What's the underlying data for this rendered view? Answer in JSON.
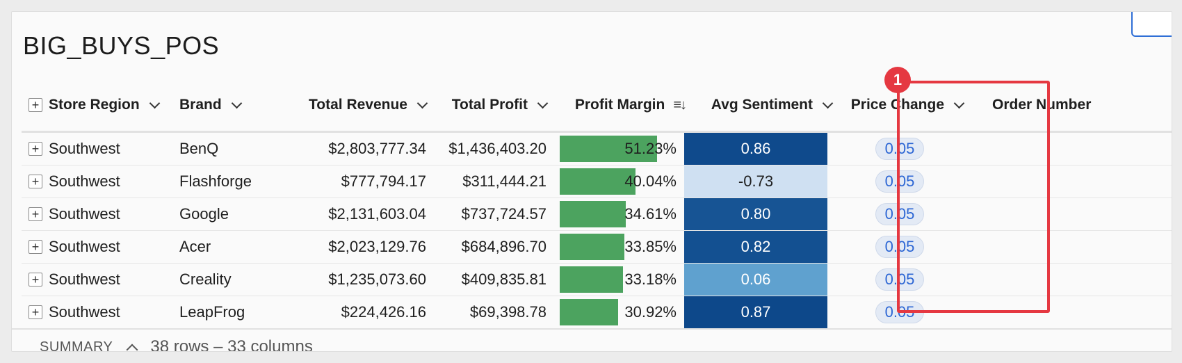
{
  "page": {
    "title": "BIG_BUYS_POS"
  },
  "columns": [
    {
      "label": "Store Region",
      "has_dropdown": true
    },
    {
      "label": "Brand",
      "has_dropdown": true
    },
    {
      "label": "Total Revenue",
      "has_dropdown": true
    },
    {
      "label": "Total Profit",
      "has_dropdown": true
    },
    {
      "label": "Profit Margin",
      "sort": "descending"
    },
    {
      "label": "Avg Sentiment",
      "has_dropdown": true
    },
    {
      "label": "Price Change",
      "has_dropdown": true
    },
    {
      "label": "Order Number"
    }
  ],
  "rows": [
    {
      "region": "Southwest",
      "brand": "BenQ",
      "revenue": "$2,803,777.34",
      "profit": "$1,436,403.20",
      "margin": "51.23%",
      "margin_value": 51.23,
      "sentiment": "0.86",
      "sentiment_color": "#0f4a8c",
      "sentiment_text_color": "#ffffff",
      "price_change": "0.05"
    },
    {
      "region": "Southwest",
      "brand": "Flashforge",
      "revenue": "$777,794.17",
      "profit": "$311,444.21",
      "margin": "40.04%",
      "margin_value": 40.04,
      "sentiment": "-0.73",
      "sentiment_color": "#cfe0f2",
      "sentiment_text_color": "#1e1e1e",
      "price_change": "0.05"
    },
    {
      "region": "Southwest",
      "brand": "Google",
      "revenue": "$2,131,603.04",
      "profit": "$737,724.57",
      "margin": "34.61%",
      "margin_value": 34.61,
      "sentiment": "0.80",
      "sentiment_color": "#175494",
      "sentiment_text_color": "#ffffff",
      "price_change": "0.05"
    },
    {
      "region": "Southwest",
      "brand": "Acer",
      "revenue": "$2,023,129.76",
      "profit": "$684,896.70",
      "margin": "33.85%",
      "margin_value": 33.85,
      "sentiment": "0.82",
      "sentiment_color": "#135091",
      "sentiment_text_color": "#ffffff",
      "price_change": "0.05"
    },
    {
      "region": "Southwest",
      "brand": "Creality",
      "revenue": "$1,235,073.60",
      "profit": "$409,835.81",
      "margin": "33.18%",
      "margin_value": 33.18,
      "sentiment": "0.06",
      "sentiment_color": "#5fa1cf",
      "sentiment_text_color": "#ffffff",
      "price_change": "0.05"
    },
    {
      "region": "Southwest",
      "brand": "LeapFrog",
      "revenue": "$224,426.16",
      "profit": "$69,398.78",
      "margin": "30.92%",
      "margin_value": 30.92,
      "sentiment": "0.87",
      "sentiment_color": "#0d488a",
      "sentiment_text_color": "#ffffff",
      "price_change": "0.05"
    }
  ],
  "annotation": {
    "badge": "1",
    "color": "#e53841"
  },
  "footer": {
    "summary_label": "SUMMARY",
    "count": "38 rows – 33 columns"
  },
  "colors": {
    "bar": "#4ca35f",
    "pill_text": "#2c66d4",
    "accent": "#2f6fd6"
  }
}
